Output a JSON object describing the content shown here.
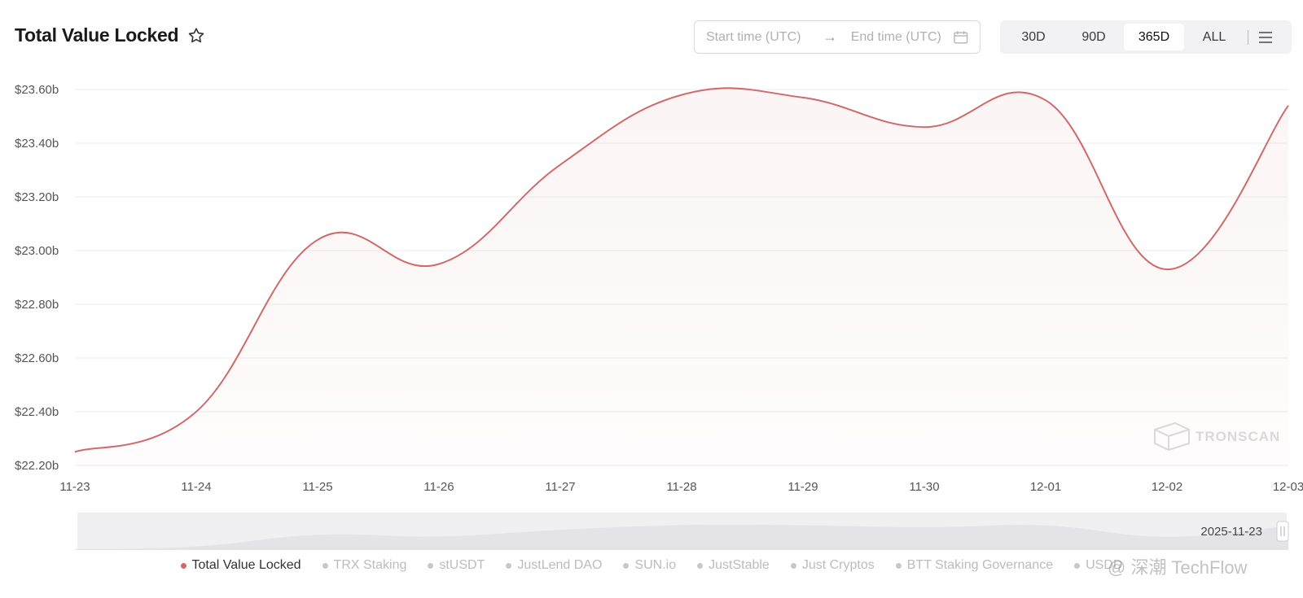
{
  "header": {
    "title": "Total Value Locked"
  },
  "date_range": {
    "start_placeholder": "Start time (UTC)",
    "arrow": "→",
    "end_placeholder": "End time (UTC)"
  },
  "ranges": {
    "d30": "30D",
    "d90": "90D",
    "d365": "365D",
    "all": "ALL",
    "selected": "365D"
  },
  "watermark": {
    "logo": "TRONSCAN",
    "overlay": "@ 深潮 TechFlow"
  },
  "slider": {
    "date_label": "2025-11-23"
  },
  "legend": {
    "tvl": "Total Value Locked",
    "trx_staking": "TRX Staking",
    "stusdt": "stUSDT",
    "justlend": "JustLend DAO",
    "sunio": "SUN.io",
    "juststable": "JustStable",
    "justcryptos": "Just Cryptos",
    "btt": "BTT Staking Governance",
    "usdd": "USDD"
  },
  "colors": {
    "series": "#d06a6a",
    "grid": "#ededed",
    "active_range_bg": "#ffffff"
  },
  "chart_data": {
    "type": "area",
    "title": "Total Value Locked",
    "categories": [
      "11-23",
      "11-24",
      "11-25",
      "11-26",
      "11-27",
      "11-28",
      "11-29",
      "11-30",
      "12-01",
      "12-02",
      "12-03"
    ],
    "y_ticks": [
      "$22.20b",
      "$22.40b",
      "$22.60b",
      "$22.80b",
      "$23.00b",
      "$23.20b",
      "$23.40b",
      "$23.60b"
    ],
    "ylim": [
      22.2,
      23.6
    ],
    "y_unit": "billion USD",
    "series": [
      {
        "name": "Total Value Locked",
        "values": [
          22.25,
          22.4,
          23.04,
          22.95,
          23.32,
          23.58,
          23.57,
          23.46,
          23.56,
          22.93,
          23.54
        ]
      }
    ],
    "grid": true,
    "legend_position": "bottom"
  }
}
